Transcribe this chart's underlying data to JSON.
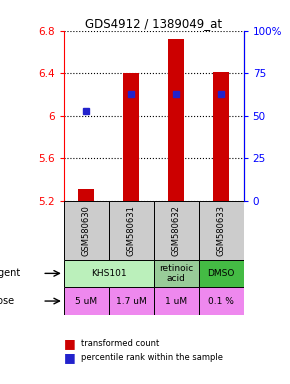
{
  "title": "GDS4912 / 1389049_at",
  "samples": [
    "GSM580630",
    "GSM580631",
    "GSM580632",
    "GSM580633"
  ],
  "bar_bottoms": [
    5.2,
    5.2,
    5.2,
    5.2
  ],
  "bar_tops": [
    5.31,
    6.4,
    6.72,
    6.41
  ],
  "percentile_values": [
    6.05,
    6.21,
    6.21,
    6.21
  ],
  "ylim": [
    5.2,
    6.8
  ],
  "yticks_left": [
    5.2,
    5.6,
    6.0,
    6.4,
    6.8
  ],
  "ytick_labels_left": [
    "5.2",
    "5.6",
    "6",
    "6.4",
    "6.8"
  ],
  "yticks_right_pct": [
    0,
    25,
    50,
    75,
    100
  ],
  "ytick_labels_right": [
    "0",
    "25",
    "50",
    "75",
    "100%"
  ],
  "bar_color": "#cc0000",
  "percentile_color": "#2222cc",
  "agent_spans": [
    [
      0,
      2,
      "KHS101",
      "#bbf0bb"
    ],
    [
      2,
      3,
      "retinoic\nacid",
      "#99cc99"
    ],
    [
      3,
      4,
      "DMSO",
      "#44bb44"
    ]
  ],
  "dose_labels": [
    "5 uM",
    "1.7 uM",
    "1 uM",
    "0.1 %"
  ],
  "dose_color": "#ee88ee",
  "sample_bg_color": "#cccccc",
  "legend_red_label": "transformed count",
  "legend_blue_label": "percentile rank within the sample",
  "bar_width": 0.35
}
